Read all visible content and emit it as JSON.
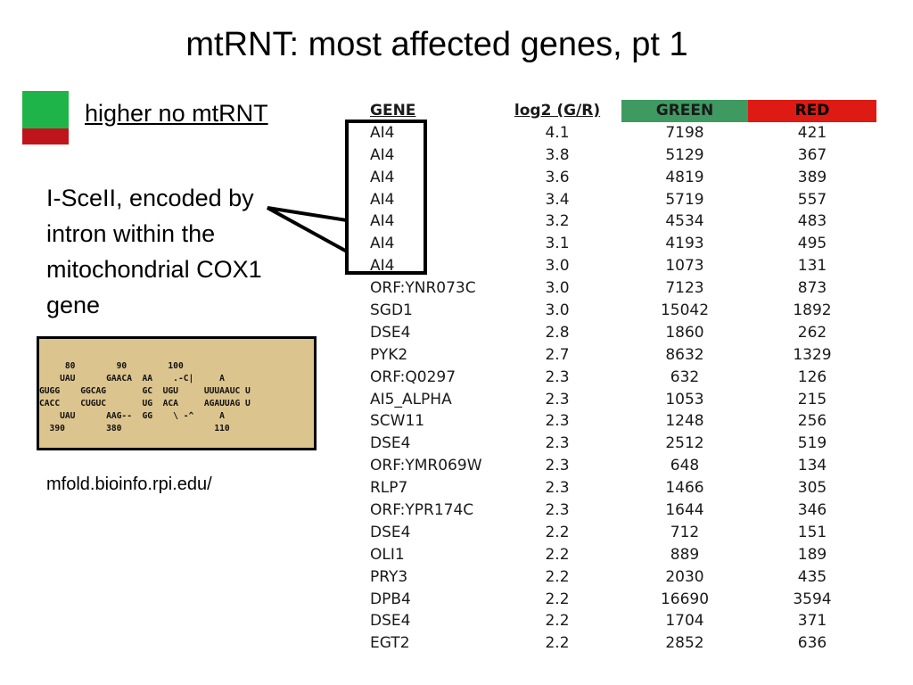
{
  "slide": {
    "title": "mtRNT: most affected genes, pt 1",
    "legend_label": "higher no mtRNT",
    "legend_colors": {
      "green": "#1fb44a",
      "red": "#c0141c"
    },
    "note": "I-SceII, encoded by intron within the mitochondrial COX1 gene",
    "source_link": "mfold.bioinfo.rpi.edu/",
    "rna_structure": [
      "     80        90        100",
      "    UAU      GAACA  AA    .-C|     A",
      "GUGG    GGCAG       GC  UGU     UUUAAUC U",
      "CACC    CUGUC       UG  ACA     AGAUUAG U",
      "    UAU      AAG--  GG    \\ -^     A",
      "  390        380                  110"
    ]
  },
  "table": {
    "headers": {
      "gene": "GENE",
      "log": "log2 (G/R)",
      "green": "GREEN",
      "red": "RED"
    },
    "header_colors": {
      "green": "#3f9a62",
      "red": "#dd1a14"
    },
    "rows": [
      [
        "AI4",
        "4.1",
        "7198",
        "421"
      ],
      [
        "AI4",
        "3.8",
        "5129",
        "367"
      ],
      [
        "AI4",
        "3.6",
        "4819",
        "389"
      ],
      [
        "AI4",
        "3.4",
        "5719",
        "557"
      ],
      [
        "AI4",
        "3.2",
        "4534",
        "483"
      ],
      [
        "AI4",
        "3.1",
        "4193",
        "495"
      ],
      [
        "AI4",
        "3.0",
        "1073",
        "131"
      ],
      [
        "ORF:YNR073C",
        "3.0",
        "7123",
        "873"
      ],
      [
        "SGD1",
        "3.0",
        "15042",
        "1892"
      ],
      [
        "DSE4",
        "2.8",
        "1860",
        "262"
      ],
      [
        "PYK2",
        "2.7",
        "8632",
        "1329"
      ],
      [
        "ORF:Q0297",
        "2.3",
        "632",
        "126"
      ],
      [
        "AI5_ALPHA",
        "2.3",
        "1053",
        "215"
      ],
      [
        "SCW11",
        "2.3",
        "1248",
        "256"
      ],
      [
        "DSE4",
        "2.3",
        "2512",
        "519"
      ],
      [
        "ORF:YMR069W",
        "2.3",
        "648",
        "134"
      ],
      [
        "RLP7",
        "2.3",
        "1466",
        "305"
      ],
      [
        "ORF:YPR174C",
        "2.3",
        "1644",
        "346"
      ],
      [
        "DSE4",
        "2.2",
        "712",
        "151"
      ],
      [
        "OLI1",
        "2.2",
        "889",
        "189"
      ],
      [
        "PRY3",
        "2.2",
        "2030",
        "435"
      ],
      [
        "DPB4",
        "2.2",
        "16690",
        "3594"
      ],
      [
        "DSE4",
        "2.2",
        "1704",
        "371"
      ],
      [
        "EGT2",
        "2.2",
        "2852",
        "636"
      ]
    ]
  }
}
